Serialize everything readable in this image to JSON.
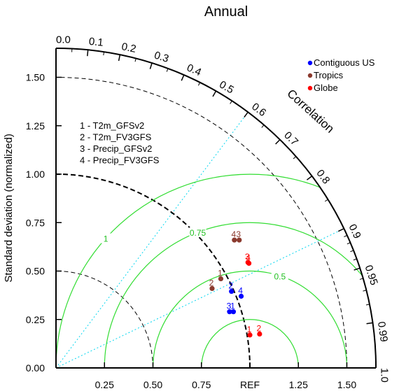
{
  "chart_data": {
    "type": "scatter",
    "subtype": "taylor-diagram",
    "title": "Annual",
    "ylabel": "Standard deviation (normalized)",
    "corr_label": "Correlation",
    "ref_label": "REF",
    "std_range": [
      0,
      1.65
    ],
    "x_ticks": [
      "0.25",
      "0.50",
      "0.75",
      "REF",
      "1.25",
      "1.50"
    ],
    "y_ticks": [
      "0.00",
      "0.25",
      "0.50",
      "0.75",
      "1.00",
      "1.25",
      "1.50"
    ],
    "corr_ticks": [
      "0.0",
      "0.1",
      "0.2",
      "0.3",
      "0.4",
      "0.5",
      "0.6",
      "0.7",
      "0.8",
      "0.9",
      "0.95",
      "0.99",
      "1.0"
    ],
    "rms_contours": [
      {
        "label": "1",
        "value": 1.0
      },
      {
        "label": "0.75",
        "value": 0.75
      },
      {
        "label": "0.5",
        "value": 0.5
      },
      {
        "label": "",
        "value": 0.25
      }
    ],
    "case_key": [
      "1 - T2m_GFSv2",
      "2 - T2m_FV3GFS",
      "3 - Precip_GFSv2",
      "4 - Precip_FV3GFS"
    ],
    "series": [
      {
        "name": "Contiguous US",
        "color": "#0000ff",
        "points": [
          {
            "label": "1",
            "x": 0.915,
            "y": 0.29
          },
          {
            "label": "2",
            "x": 0.905,
            "y": 0.395
          },
          {
            "label": "3",
            "x": 0.895,
            "y": 0.29
          },
          {
            "label": "4",
            "x": 0.955,
            "y": 0.37
          }
        ]
      },
      {
        "name": "Tropics",
        "color": "#8b3a2e",
        "points": [
          {
            "label": "1",
            "x": 0.85,
            "y": 0.46
          },
          {
            "label": "2",
            "x": 0.805,
            "y": 0.41
          },
          {
            "label": "3",
            "x": 0.945,
            "y": 0.66
          },
          {
            "label": "4",
            "x": 0.92,
            "y": 0.66
          }
        ]
      },
      {
        "name": "Globe",
        "color": "#ff0000",
        "points": [
          {
            "label": "1",
            "x": 1.0,
            "y": 0.17
          },
          {
            "label": "2",
            "x": 1.05,
            "y": 0.175
          },
          {
            "label": "3",
            "x": 0.99,
            "y": 0.545
          },
          {
            "label": "4",
            "x": 0.995,
            "y": 0.54
          }
        ]
      }
    ]
  }
}
